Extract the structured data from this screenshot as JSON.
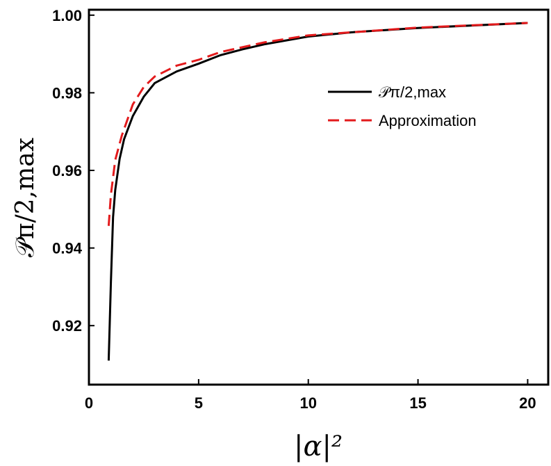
{
  "chart_data": {
    "type": "line",
    "xlabel": "|α|²",
    "ylabel": "𝒫π/2,max",
    "xlim": [
      0,
      21
    ],
    "ylim": [
      0.9048,
      1.0014
    ],
    "xticks": [
      0,
      5,
      10,
      15,
      20
    ],
    "yticks": [
      0.92,
      0.94,
      0.96,
      0.98,
      {
        "value": 1,
        "label": "1.00"
      }
    ],
    "legend": "upper right",
    "series": [
      {
        "name": "𝒫π/2,max",
        "color": "#000000",
        "dash": false,
        "x": [
          0.9,
          1.0,
          1.1,
          1.2,
          1.4,
          1.6,
          2,
          2.5,
          3,
          4,
          5,
          6,
          7,
          8,
          10,
          12,
          15,
          20
        ],
        "values": [
          0.911,
          0.931,
          0.948,
          0.955,
          0.963,
          0.968,
          0.974,
          0.979,
          0.9825,
          0.9855,
          0.9875,
          0.9897,
          0.9912,
          0.9925,
          0.9945,
          0.9956,
          0.9967,
          0.998
        ]
      },
      {
        "name": "Approximation",
        "color": "#e31a1c",
        "dash": true,
        "x": [
          0.9,
          1.0,
          1.2,
          1.5,
          2,
          2.5,
          3,
          4,
          5,
          6,
          8,
          10,
          15,
          20
        ],
        "values": [
          0.9457,
          0.9537,
          0.9627,
          0.969,
          0.977,
          0.9815,
          0.9842,
          0.987,
          0.9885,
          0.9905,
          0.993,
          0.9948,
          0.9968,
          0.998
        ]
      }
    ]
  }
}
